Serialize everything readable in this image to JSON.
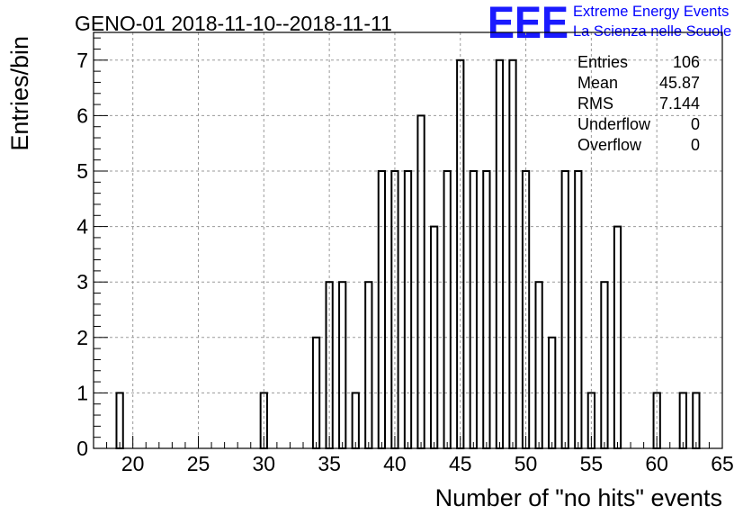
{
  "chart_data": {
    "type": "bar",
    "title": "GENO-01 2018-11-10--2018-11-11",
    "xlabel": "Number of \"no hits\" events",
    "ylabel": "Entries/bin",
    "xlim": [
      17,
      65
    ],
    "ylim": [
      0,
      7.5
    ],
    "x_ticks": [
      "20",
      "25",
      "30",
      "35",
      "40",
      "45",
      "50",
      "55",
      "60",
      "65"
    ],
    "y_ticks": [
      "0",
      "1",
      "2",
      "3",
      "4",
      "5",
      "6",
      "7"
    ],
    "grid": true,
    "bin_width": 0.5,
    "bins": [
      {
        "x": 19,
        "value": 1
      },
      {
        "x": 30,
        "value": 1
      },
      {
        "x": 34,
        "value": 2
      },
      {
        "x": 35,
        "value": 3
      },
      {
        "x": 36,
        "value": 3
      },
      {
        "x": 37,
        "value": 1
      },
      {
        "x": 38,
        "value": 3
      },
      {
        "x": 39,
        "value": 5
      },
      {
        "x": 40,
        "value": 5
      },
      {
        "x": 41,
        "value": 5
      },
      {
        "x": 42,
        "value": 6
      },
      {
        "x": 43,
        "value": 4
      },
      {
        "x": 44,
        "value": 5
      },
      {
        "x": 45,
        "value": 7
      },
      {
        "x": 46,
        "value": 5
      },
      {
        "x": 47,
        "value": 5
      },
      {
        "x": 48,
        "value": 7
      },
      {
        "x": 49,
        "value": 7
      },
      {
        "x": 50,
        "value": 5
      },
      {
        "x": 51,
        "value": 3
      },
      {
        "x": 52,
        "value": 2
      },
      {
        "x": 53,
        "value": 5
      },
      {
        "x": 54,
        "value": 5
      },
      {
        "x": 55,
        "value": 1
      },
      {
        "x": 56,
        "value": 3
      },
      {
        "x": 57,
        "value": 4
      },
      {
        "x": 60,
        "value": 1
      },
      {
        "x": 62,
        "value": 1
      },
      {
        "x": 63,
        "value": 1
      }
    ],
    "stats": [
      {
        "label": "Entries",
        "value": "106"
      },
      {
        "label": "Mean",
        "value": "45.87"
      },
      {
        "label": "RMS",
        "value": "7.144"
      },
      {
        "label": "Underflow",
        "value": "0"
      },
      {
        "label": "Overflow",
        "value": "0"
      }
    ],
    "stats_placement": "top-right"
  },
  "logo": {
    "mark": "EEE",
    "line1": "Extreme Energy Events",
    "line2": "La Scienza nelle Scuole",
    "color": "#0000ff"
  }
}
